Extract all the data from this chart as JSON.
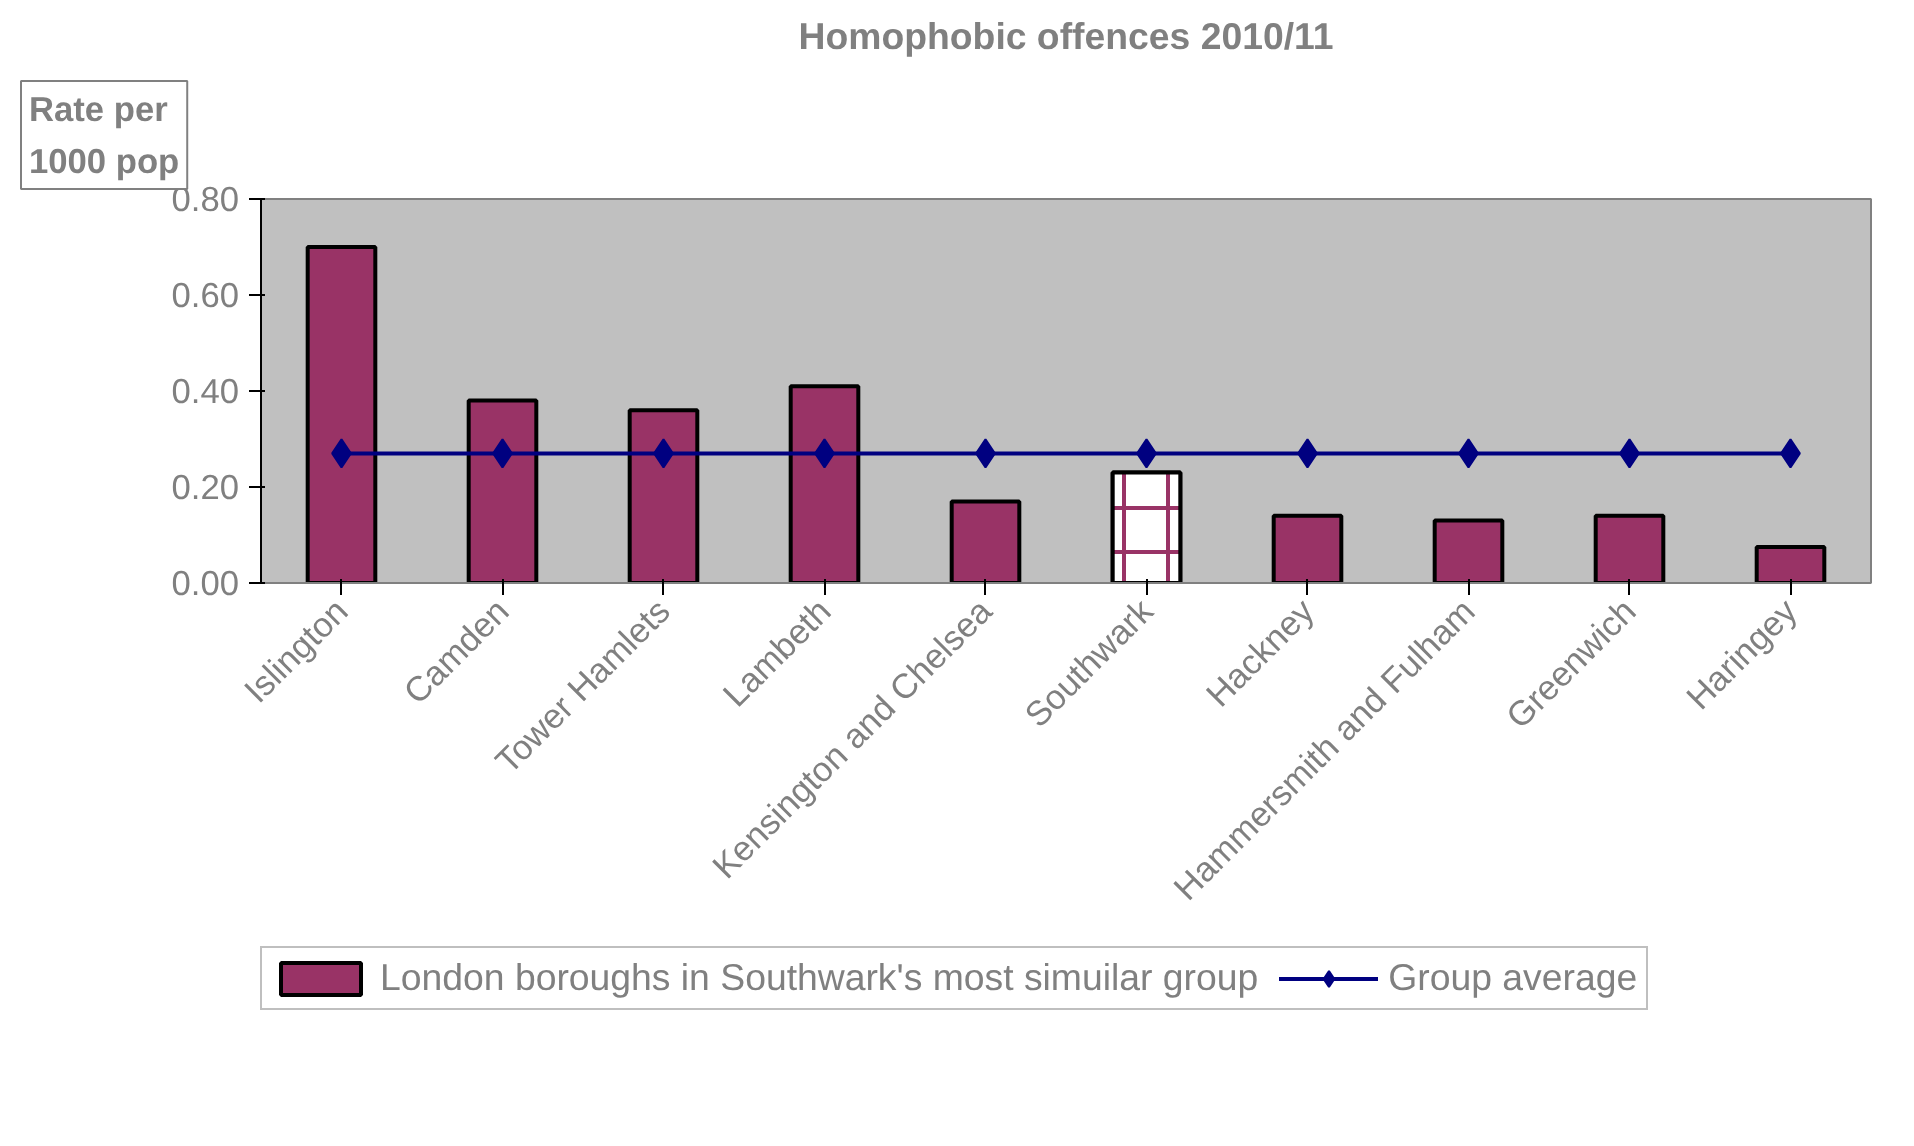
{
  "chart_data": {
    "type": "bar",
    "title": "Homophobic offences 2010/11",
    "ylabel": "Rate per 1000 pop",
    "categories": [
      "Islington",
      "Camden",
      "Tower Hamlets",
      "Lambeth",
      "Kensington and Chelsea",
      "Southwark",
      "Hackney",
      "Hammersmith and Fulham",
      "Greenwich",
      "Haringey"
    ],
    "series": [
      {
        "name": "London boroughs in Southwark's most simuilar group",
        "color": "#993366",
        "colors": [
          "#993366",
          "#993366",
          "#993366",
          "#993366",
          "#993366",
          "#ffffff",
          "#993366",
          "#993366",
          "#993366",
          "#993366"
        ],
        "values": [
          0.7,
          0.38,
          0.36,
          0.41,
          0.17,
          0.23,
          0.14,
          0.13,
          0.14,
          0.075
        ]
      },
      {
        "name": "Group average",
        "type": "line",
        "color": "#000080",
        "marker": "diamond",
        "values": [
          0.27,
          0.27,
          0.27,
          0.27,
          0.27,
          0.27,
          0.27,
          0.27,
          0.27,
          0.27
        ]
      }
    ],
    "ylim": [
      0,
      0.8
    ],
    "yticks": [
      {
        "value": 0,
        "label": "0.00"
      },
      {
        "value": 0.2,
        "label": "0.20"
      },
      {
        "value": 0.4,
        "label": "0.40"
      },
      {
        "value": 0.6,
        "label": "0.60"
      },
      {
        "value": 0.8,
        "label": "0.80"
      }
    ],
    "grid": false,
    "legend": "bottom"
  }
}
